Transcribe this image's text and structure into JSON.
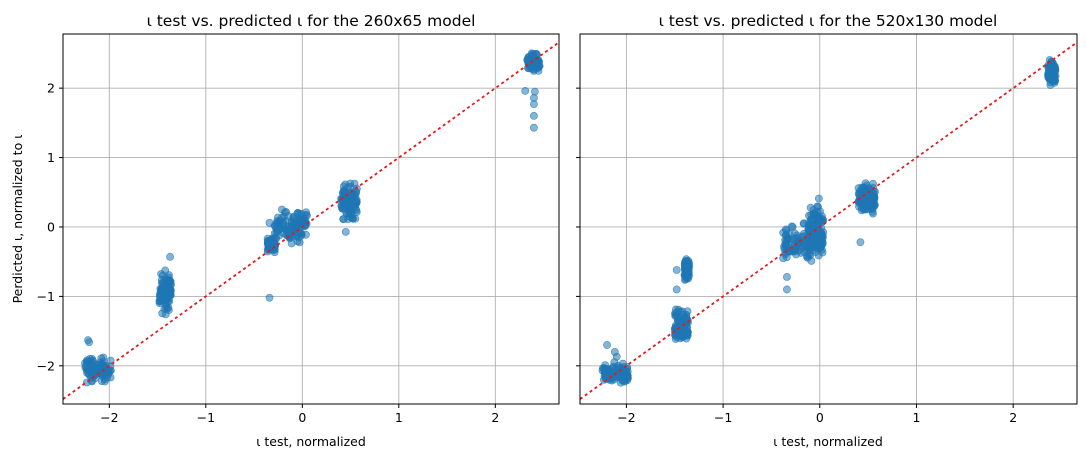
{
  "chart_data": [
    {
      "type": "scatter",
      "title": "ι test vs. predicted ι for the 260x65 model",
      "xlabel": "ι test, normalized",
      "ylabel": "Perdicted ι, normalized to ι",
      "xlim": [
        -2.48,
        2.66
      ],
      "ylim": [
        -2.55,
        2.78
      ],
      "xticks": [
        -2,
        -1,
        0,
        1,
        2
      ],
      "xtick_labels": [
        "−2",
        "−1",
        "0",
        "1",
        "2"
      ],
      "yticks": [
        -2,
        -1,
        0,
        1,
        2
      ],
      "ytick_labels": [
        "−2",
        "−1",
        "0",
        "1",
        "2"
      ],
      "grid": true,
      "point_color": "#1f77b4",
      "point_alpha": 0.55,
      "reference_line": {
        "slope": 1,
        "intercept": 0,
        "color": "#e41a1c",
        "style": "dotted"
      },
      "clusters": [
        {
          "x_min": -2.26,
          "x_max": -1.98,
          "y_min": -2.3,
          "y_max": -1.82
        },
        {
          "x_min": -1.48,
          "x_max": -1.36,
          "y_min": -1.32,
          "y_max": -0.55
        },
        {
          "x_min": -0.36,
          "x_max": -0.28,
          "y_min": -0.4,
          "y_max": -0.1
        },
        {
          "x_min": -0.3,
          "x_max": 0.05,
          "y_min": -0.28,
          "y_max": 0.32
        },
        {
          "x_min": 0.4,
          "x_max": 0.57,
          "y_min": 0.02,
          "y_max": 0.7
        },
        {
          "x_min": 2.33,
          "x_max": 2.46,
          "y_min": 2.2,
          "y_max": 2.55
        }
      ],
      "outliers": [
        {
          "x": -2.22,
          "y": -1.63
        },
        {
          "x": -2.21,
          "y": -1.66
        },
        {
          "x": -0.34,
          "y": 0.06
        },
        {
          "x": -0.34,
          "y": -1.02
        },
        {
          "x": -1.37,
          "y": -0.43
        },
        {
          "x": 0.45,
          "y": -0.07
        },
        {
          "x": 2.31,
          "y": 1.96
        },
        {
          "x": 2.4,
          "y": 1.43
        },
        {
          "x": 2.4,
          "y": 1.6
        },
        {
          "x": 2.4,
          "y": 1.77
        },
        {
          "x": 2.4,
          "y": 1.86
        },
        {
          "x": 2.41,
          "y": 1.95
        }
      ]
    },
    {
      "type": "scatter",
      "title": "ι test vs. predicted ι for the 520x130 model",
      "xlabel": "ι test, normalized",
      "ylabel": "",
      "xlim": [
        -2.48,
        2.66
      ],
      "ylim": [
        -2.55,
        2.78
      ],
      "xticks": [
        -2,
        -1,
        0,
        1,
        2
      ],
      "xtick_labels": [
        "−2",
        "−1",
        "0",
        "1",
        "2"
      ],
      "yticks": [
        -2,
        -1,
        0,
        1,
        2
      ],
      "ytick_labels": [],
      "grid": true,
      "point_color": "#1f77b4",
      "point_alpha": 0.55,
      "reference_line": {
        "slope": 1,
        "intercept": 0,
        "color": "#e41a1c",
        "style": "dotted"
      },
      "clusters": [
        {
          "x_min": -2.25,
          "x_max": -1.98,
          "y_min": -2.32,
          "y_max": -1.92
        },
        {
          "x_min": -1.5,
          "x_max": -1.36,
          "y_min": -1.8,
          "y_max": -1.1
        },
        {
          "x_min": -1.4,
          "x_max": -1.35,
          "y_min": -0.85,
          "y_max": -0.38
        },
        {
          "x_min": -0.38,
          "x_max": 0.03,
          "y_min": -0.6,
          "y_max": 0.1
        },
        {
          "x_min": -0.12,
          "x_max": 0.04,
          "y_min": -0.45,
          "y_max": 0.4
        },
        {
          "x_min": 0.4,
          "x_max": 0.57,
          "y_min": 0.1,
          "y_max": 0.75
        },
        {
          "x_min": 2.36,
          "x_max": 2.44,
          "y_min": 1.95,
          "y_max": 2.48
        }
      ],
      "outliers": [
        {
          "x": -2.2,
          "y": -1.7
        },
        {
          "x": -2.12,
          "y": -1.8
        },
        {
          "x": -2.1,
          "y": -1.87
        },
        {
          "x": -1.48,
          "y": -0.62
        },
        {
          "x": -1.48,
          "y": -0.9
        },
        {
          "x": -0.34,
          "y": -0.9
        },
        {
          "x": -0.34,
          "y": -0.72
        },
        {
          "x": 0.42,
          "y": -0.22
        },
        {
          "x": -0.01,
          "y": 0.41
        }
      ]
    }
  ]
}
